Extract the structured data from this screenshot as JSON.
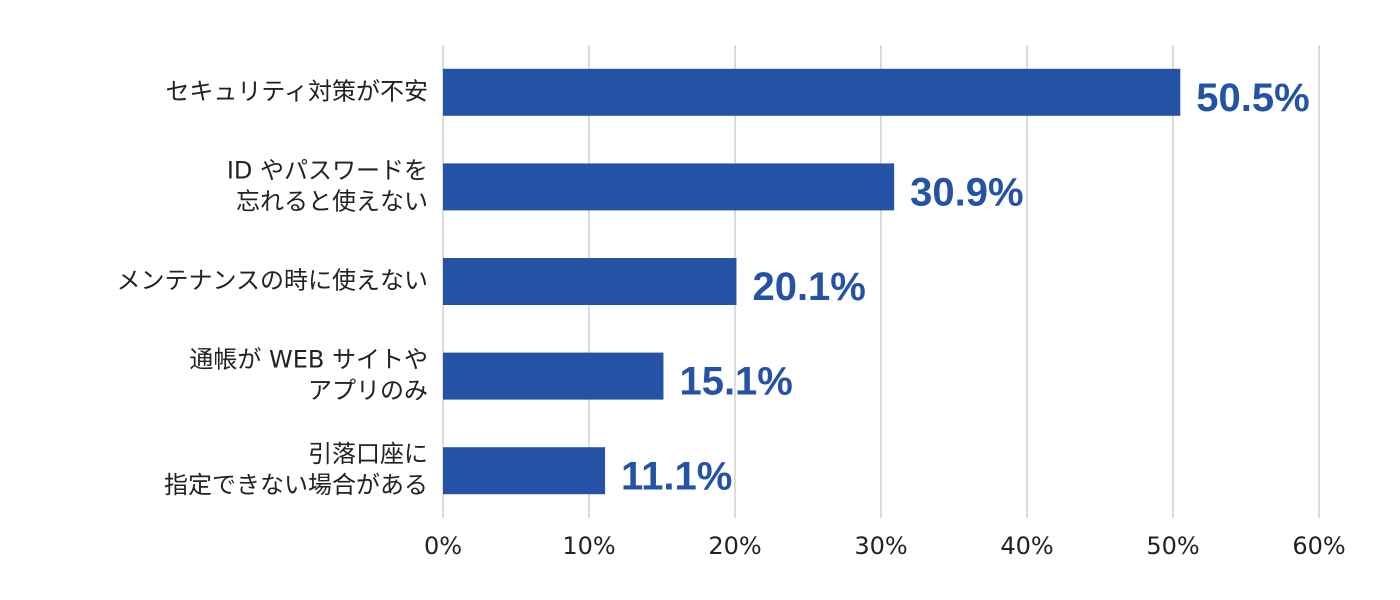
{
  "chart_data": {
    "type": "bar",
    "orientation": "horizontal",
    "categories": [
      [
        "セキュリティ対策が不安"
      ],
      [
        "ID やパスワードを",
        "忘れると使えない"
      ],
      [
        "メンテナンスの時に使えない"
      ],
      [
        "通帳が WEB サイトや",
        "アプリのみ"
      ],
      [
        "引落口座に",
        "指定できない場合がある"
      ]
    ],
    "values": [
      50.5,
      30.9,
      20.1,
      15.1,
      11.1
    ],
    "value_labels": [
      "50.5%",
      "30.9%",
      "20.1%",
      "15.1%",
      "11.1%"
    ],
    "color": "#2453a6",
    "xlim": [
      0,
      60
    ],
    "xticks": [
      {
        "value": 0,
        "label": "0%"
      },
      {
        "value": 10,
        "label": "10%"
      },
      {
        "value": 20,
        "label": "20%"
      },
      {
        "value": 30,
        "label": "30%"
      },
      {
        "value": 40,
        "label": "40%"
      },
      {
        "value": 50,
        "label": "50%"
      },
      {
        "value": 60,
        "label": "60%"
      }
    ],
    "grid": true
  }
}
